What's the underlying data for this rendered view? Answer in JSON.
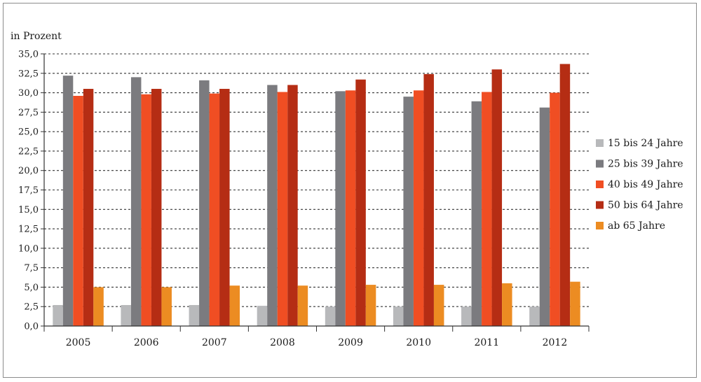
{
  "chart_data": {
    "type": "bar",
    "ylabel": "in Prozent",
    "ylim": [
      0,
      35
    ],
    "yticks": [
      "0,0",
      "2,5",
      "5,0",
      "7,5",
      "10,0",
      "12,5",
      "15,0",
      "17,5",
      "20,0",
      "22,5",
      "25,0",
      "27,5",
      "30,0",
      "32,5",
      "35,0"
    ],
    "grid": true,
    "legend_position": "right",
    "categories": [
      "2005",
      "2006",
      "2007",
      "2008",
      "2009",
      "2010",
      "2011",
      "2012"
    ],
    "series": [
      {
        "name": "15 bis 24 Jahre",
        "color": "#b8b9bb",
        "values": [
          2.7,
          2.7,
          2.7,
          2.6,
          2.5,
          2.5,
          2.5,
          2.5
        ]
      },
      {
        "name": "25 bis 39 Jahre",
        "color": "#7b7b7f",
        "values": [
          32.2,
          32.0,
          31.6,
          31.0,
          30.2,
          29.5,
          28.9,
          28.1
        ]
      },
      {
        "name": "40 bis 49 Jahre",
        "color": "#f04e23",
        "values": [
          29.6,
          29.8,
          29.9,
          30.1,
          30.3,
          30.3,
          30.1,
          30.0
        ]
      },
      {
        "name": "50 bis 64 Jahre",
        "color": "#b52d14",
        "values": [
          30.5,
          30.5,
          30.5,
          31.0,
          31.7,
          32.4,
          33.0,
          33.7
        ]
      },
      {
        "name": "ab 65 Jahre",
        "color": "#ec8c22",
        "values": [
          5.0,
          5.0,
          5.2,
          5.2,
          5.3,
          5.3,
          5.5,
          5.7
        ]
      }
    ]
  }
}
